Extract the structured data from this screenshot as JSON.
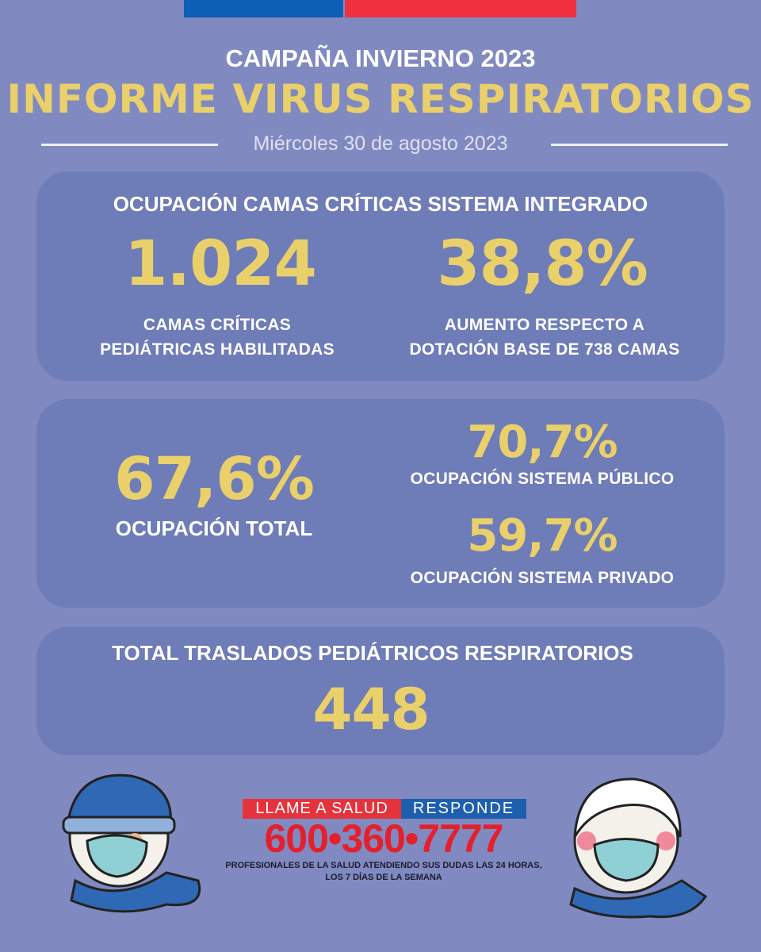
{
  "header": {
    "campaign": "CAMPAÑA INVIERNO 2023",
    "title": "INFORME VIRUS RESPIRATORIOS",
    "date": "Miércoles 30 de agosto 2023"
  },
  "beds_card": {
    "title": "OCUPACIÓN CAMAS CRÍTICAS SISTEMA INTEGRADO",
    "stats": [
      {
        "value": "1.024",
        "label": [
          "CAMAS CRÍTICAS",
          "PEDIÁTRICAS HABILITADAS"
        ]
      },
      {
        "value": "38,8%",
        "label": [
          "AUMENTO RESPECTO A",
          "DOTACIÓN BASE DE 738 CAMAS"
        ]
      }
    ]
  },
  "occupancy_card": {
    "total": {
      "value": "67,6%",
      "label": "OCUPACIÓN TOTAL"
    },
    "public": {
      "value": "70,7%",
      "label": "OCUPACIÓN SISTEMA PÚBLICO"
    },
    "private": {
      "value": "59,7%",
      "label": "OCUPACIÓN SISTEMA PRIVADO"
    }
  },
  "transfers_card": {
    "title": "TOTAL TRASLADOS PEDIÁTRICOS RESPIRATORIOS",
    "value": "448"
  },
  "footer": {
    "banner_left": "LLAME A SALUD",
    "banner_right": "RESPONDE",
    "phone": "600•360•7777",
    "note": [
      "PROFESIONALES DE LA SALUD ATENDIENDO SUS DUDAS LAS 24 HORAS,",
      "LOS 7 DÍAS DE LA SEMANA"
    ]
  }
}
